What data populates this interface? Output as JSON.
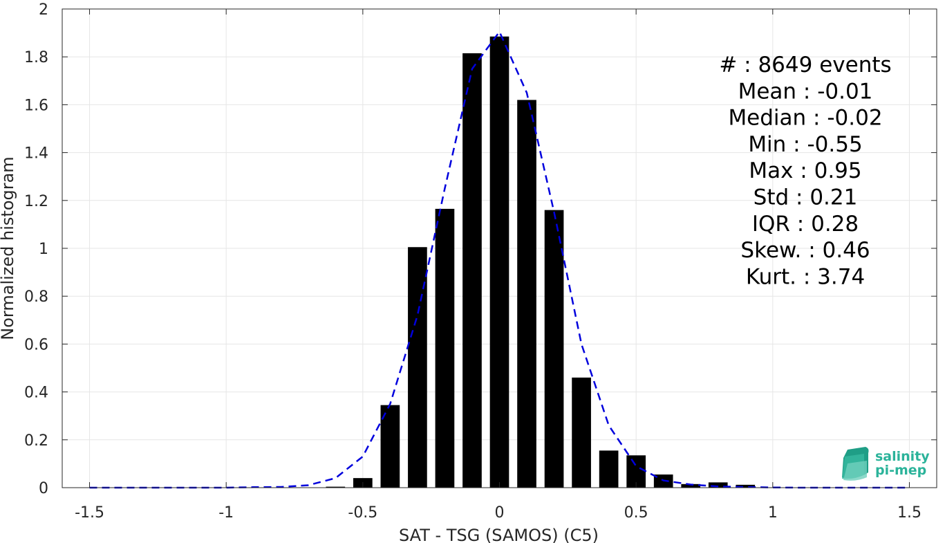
{
  "chart_data": {
    "type": "bar",
    "xlabel": "SAT - TSG (SAMOS) (C5)",
    "ylabel": "Normalized histogram",
    "xlim": [
      -1.6,
      1.6
    ],
    "ylim": [
      0,
      2
    ],
    "xticks": [
      -1.5,
      -1,
      -0.5,
      0,
      0.5,
      1,
      1.5
    ],
    "xtick_labels": [
      "-1.5",
      "-1",
      "-0.5",
      "0",
      "0.5",
      "1",
      "1.5"
    ],
    "yticks": [
      0,
      0.2,
      0.4,
      0.6,
      0.8,
      1,
      1.2,
      1.4,
      1.6,
      1.8,
      2
    ],
    "ytick_labels": [
      "0",
      "0.2",
      "0.4",
      "0.6",
      "0.8",
      "1",
      "1.2",
      "1.4",
      "1.6",
      "1.8",
      "2"
    ],
    "grid": true,
    "bar_width": 0.07,
    "bar_color": "#000000",
    "bars": {
      "x": [
        -0.6,
        -0.5,
        -0.4,
        -0.3,
        -0.2,
        -0.1,
        0,
        0.1,
        0.2,
        0.3,
        0.4,
        0.5,
        0.6,
        0.7,
        0.8,
        0.9
      ],
      "values": [
        0.004,
        0.04,
        0.345,
        1.005,
        1.165,
        1.815,
        1.885,
        1.62,
        1.16,
        0.46,
        0.155,
        0.135,
        0.055,
        0.015,
        0.022,
        0.012
      ]
    },
    "fit_curve": {
      "style": "dashed",
      "color": "#0000dd",
      "x": [
        -1.5,
        -1.4,
        -1.3,
        -1.2,
        -1.1,
        -1.0,
        -0.9,
        -0.8,
        -0.7,
        -0.6,
        -0.5,
        -0.4,
        -0.3,
        -0.2,
        -0.1,
        0,
        0.1,
        0.2,
        0.3,
        0.4,
        0.5,
        0.6,
        0.7,
        0.8,
        0.9,
        1.0,
        1.1,
        1.2,
        1.3,
        1.4,
        1.5
      ],
      "y": [
        0,
        0,
        0,
        0,
        0,
        0,
        0.002,
        0.003,
        0.01,
        0.04,
        0.13,
        0.35,
        0.72,
        1.25,
        1.75,
        1.905,
        1.65,
        1.15,
        0.6,
        0.26,
        0.09,
        0.03,
        0.013,
        0.005,
        0.003,
        0.001,
        0,
        0,
        0,
        0,
        0
      ]
    },
    "stats": [
      {
        "label": "#  ",
        "value": "8649 events"
      },
      {
        "label": "Mean",
        "value": "-0.01"
      },
      {
        "label": "Median",
        "value": "-0.02"
      },
      {
        "label": "Min",
        "value": "-0.55"
      },
      {
        "label": "Max",
        "value": "0.95"
      },
      {
        "label": "Std",
        "value": "0.21"
      },
      {
        "label": "IQR",
        "value": "0.28"
      },
      {
        "label": "Skew.",
        "value": "0.46"
      },
      {
        "label": "Kurt.",
        "value": "3.74"
      }
    ]
  },
  "logo": {
    "line1": "salinity",
    "line2": "pi-mep",
    "color": "#2bb39a"
  }
}
